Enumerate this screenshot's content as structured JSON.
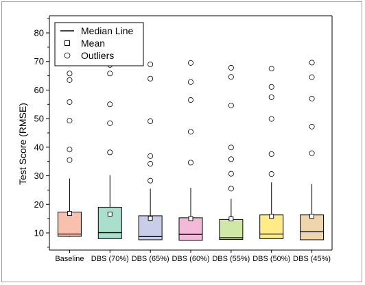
{
  "chart_data": {
    "type": "box",
    "ylabel": "Test Score (RMSE)",
    "xlabel": "",
    "ylim": [
      4,
      86
    ],
    "yticks": [
      10,
      20,
      30,
      40,
      50,
      60,
      70,
      80
    ],
    "grid": false,
    "legend": {
      "placement": "top-left",
      "entries": [
        {
          "key": "median",
          "label": "Median Line"
        },
        {
          "key": "mean",
          "label": "Mean"
        },
        {
          "key": "outlier",
          "label": "Outliers"
        }
      ]
    },
    "categories": [
      "Baseline",
      "DBS (70%)",
      "DBS (65%)",
      "DBS (60%)",
      "DBS (55%)",
      "DBS (50%)",
      "DBS (45%)"
    ],
    "colors": [
      "#f8c0ad",
      "#a9dfcc",
      "#c9cde8",
      "#f3b9d8",
      "#cfe8a5",
      "#ffec86",
      "#eed5ac"
    ],
    "boxes": [
      {
        "min": 8.6,
        "q1": 8.8,
        "median": 9.6,
        "q3": 17.3,
        "max": 29.0,
        "mean": 16.8,
        "outliers": [
          35.5,
          39.2,
          49.3,
          55.8,
          63.5,
          65.8
        ]
      },
      {
        "min": 8.0,
        "q1": 8.0,
        "median": 10.1,
        "q3": 19.0,
        "max": 30.2,
        "mean": 16.6,
        "outliers": [
          38.2,
          48.4,
          55.0,
          65.8,
          68.8
        ]
      },
      {
        "min": 7.6,
        "q1": 7.6,
        "median": 8.7,
        "q3": 16.0,
        "max": 25.5,
        "mean": 15.1,
        "outliers": [
          28.3,
          34.2,
          36.9,
          49.1,
          64.0,
          69.0
        ]
      },
      {
        "min": 7.4,
        "q1": 7.4,
        "median": 9.5,
        "q3": 15.3,
        "max": 25.8,
        "mean": 15.0,
        "outliers": [
          34.6,
          45.4,
          56.5,
          62.8,
          69.5
        ]
      },
      {
        "min": 7.7,
        "q1": 7.7,
        "median": 8.3,
        "q3": 14.7,
        "max": 22.0,
        "mean": 14.9,
        "outliers": [
          25.5,
          30.7,
          35.8,
          39.9,
          54.6,
          64.6,
          67.8
        ]
      },
      {
        "min": 8.0,
        "q1": 8.0,
        "median": 9.6,
        "q3": 16.3,
        "max": 27.7,
        "mean": 15.8,
        "outliers": [
          30.6,
          37.6,
          49.9,
          57.5,
          61.1,
          67.5
        ]
      },
      {
        "min": 7.6,
        "q1": 7.6,
        "median": 10.4,
        "q3": 16.3,
        "max": 27.1,
        "mean": 15.8,
        "outliers": [
          37.9,
          47.2,
          57.0,
          64.5,
          69.6
        ]
      }
    ]
  }
}
